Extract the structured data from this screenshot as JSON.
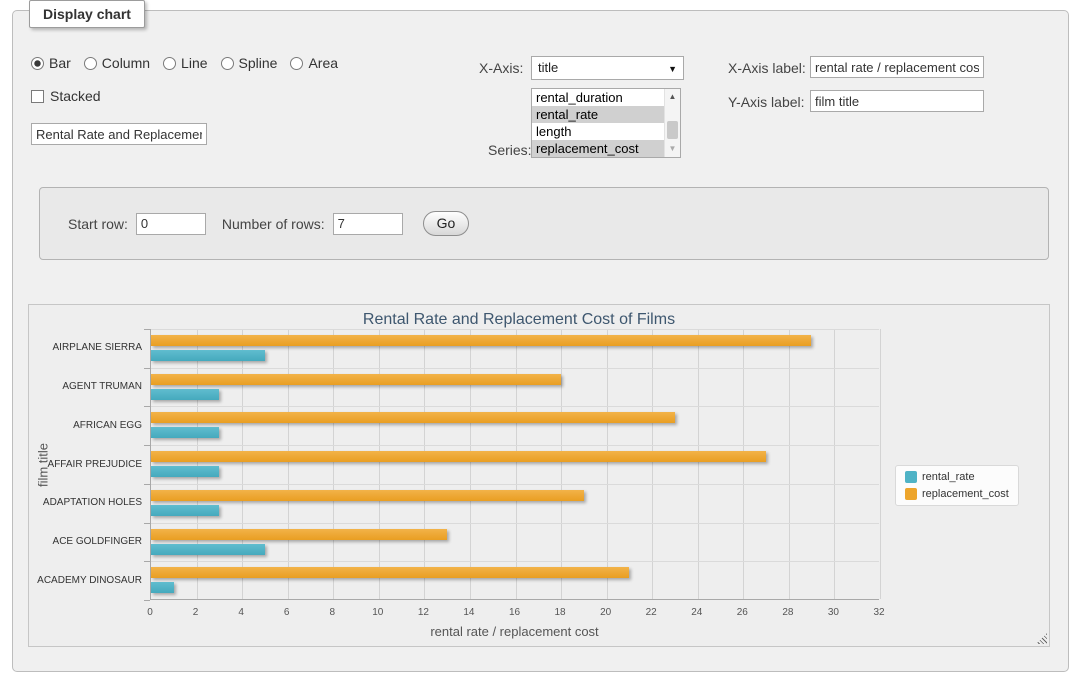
{
  "panel": {
    "title": "Display chart"
  },
  "controls": {
    "chart_types": [
      {
        "label": "Bar",
        "selected": true
      },
      {
        "label": "Column",
        "selected": false
      },
      {
        "label": "Line",
        "selected": false
      },
      {
        "label": "Spline",
        "selected": false
      },
      {
        "label": "Area",
        "selected": false
      }
    ],
    "stacked": {
      "label": "Stacked",
      "checked": false
    },
    "title_input_value": "Rental Rate and Replacemer",
    "x_axis": {
      "label": "X-Axis:",
      "selected": "title"
    },
    "series_select": {
      "label": "Series:",
      "options": [
        {
          "label": "rental_duration",
          "selected": false
        },
        {
          "label": "rental_rate",
          "selected": true
        },
        {
          "label": "length",
          "selected": false
        },
        {
          "label": "replacement_cost",
          "selected": true
        }
      ]
    },
    "x_axis_label_field": {
      "label": "X-Axis label:",
      "value": "rental rate / replacement cost"
    },
    "y_axis_label_field": {
      "label": "Y-Axis label:",
      "value": "film title"
    }
  },
  "row_controls": {
    "start_row_label": "Start row:",
    "start_row_value": "0",
    "num_rows_label": "Number of rows:",
    "num_rows_value": "7",
    "go_label": "Go"
  },
  "chart_data": {
    "type": "bar",
    "orientation": "horizontal",
    "title": "Rental Rate and Replacement Cost of Films",
    "categories": [
      "AIRPLANE SIERRA",
      "AGENT TRUMAN",
      "AFRICAN EGG",
      "AFFAIR PREJUDICE",
      "ADAPTATION HOLES",
      "ACE GOLDFINGER",
      "ACADEMY DINOSAUR"
    ],
    "series": [
      {
        "name": "rental_rate",
        "color": "#4FB3C6",
        "values": [
          4.99,
          2.99,
          2.99,
          2.99,
          2.99,
          4.99,
          0.99
        ]
      },
      {
        "name": "replacement_cost",
        "color": "#EDA52C",
        "values": [
          28.99,
          17.99,
          22.99,
          26.99,
          18.99,
          12.99,
          20.99
        ]
      }
    ],
    "group_order_top_to_bottom": [
      "replacement_cost",
      "rental_rate"
    ],
    "xlabel": "rental rate / replacement cost",
    "ylabel": "film title",
    "xlim": [
      0,
      32
    ],
    "x_tick_step": 2,
    "grid": true,
    "legend_position": "right-middle",
    "plot_background": "#eeeeee"
  }
}
